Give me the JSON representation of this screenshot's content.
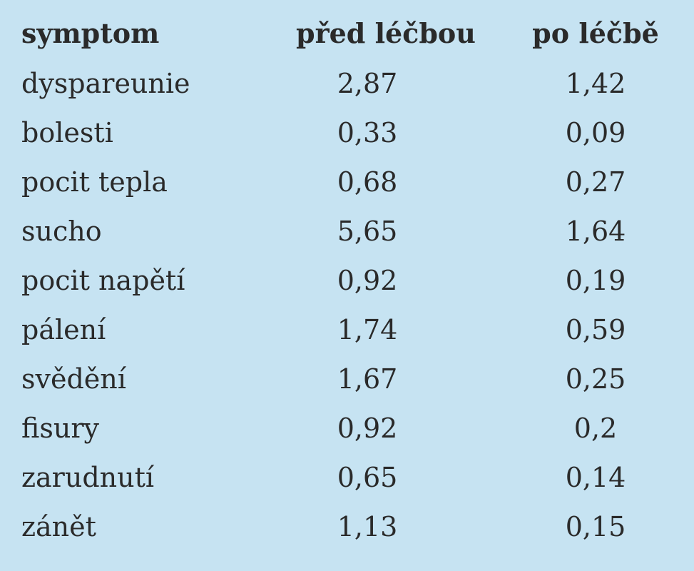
{
  "table": {
    "header": [
      "symptom",
      "před léčbou",
      "po léčbě"
    ],
    "rows": [
      [
        "dyspareunie",
        "2,87",
        "1,42"
      ],
      [
        "bolesti",
        "0,33",
        "0,09"
      ],
      [
        "pocit tepla",
        "0,68",
        "0,27"
      ],
      [
        "sucho",
        "5,65",
        "1,64"
      ],
      [
        "pocit napětí",
        "0,92",
        "0,19"
      ],
      [
        "pálení",
        "1,74",
        "0,59"
      ],
      [
        "svědění",
        "1,67",
        "0,25"
      ],
      [
        "fisury",
        "0,92",
        "0,2"
      ],
      [
        "zarudnutí",
        "0,65",
        "0,14"
      ],
      [
        "zánět",
        "1,13",
        "0,15"
      ]
    ]
  }
}
